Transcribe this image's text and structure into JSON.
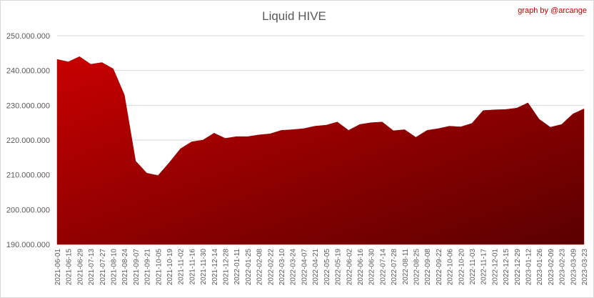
{
  "chart_data": {
    "type": "area",
    "title": "Liquid HIVE",
    "credit": "graph by @arcange",
    "categories": [
      "2021-06-01",
      "2021-06-15",
      "2021-06-29",
      "2021-07-13",
      "2021-07-27",
      "2021-08-10",
      "2021-08-24",
      "2021-09-07",
      "2021-09-21",
      "2021-10-05",
      "2021-10-19",
      "2021-11-02",
      "2021-11-16",
      "2021-11-30",
      "2021-12-14",
      "2021-12-28",
      "2022-01-11",
      "2022-01-25",
      "2022-02-08",
      "2022-02-22",
      "2022-03-10",
      "2022-03-24",
      "2022-04-07",
      "2022-04-21",
      "2022-05-05",
      "2022-05-19",
      "2022-06-02",
      "2022-06-16",
      "2022-06-30",
      "2022-07-14",
      "2022-07-28",
      "2022-08-11",
      "2022-08-25",
      "2022-09-08",
      "2022-09-22",
      "2022-10-06",
      "2022-10-20",
      "2022-11-03",
      "2022-11-17",
      "2022-12-01",
      "2022-12-15",
      "2022-12-29",
      "2023-01-12",
      "2023-01-26",
      "2023-02-09",
      "2023-02-23",
      "2023-03-09",
      "2023-03-23"
    ],
    "values": [
      243200000,
      242500000,
      244000000,
      241800000,
      242300000,
      240500000,
      233000000,
      214000000,
      210500000,
      209800000,
      213500000,
      217500000,
      219500000,
      220000000,
      222000000,
      220500000,
      221000000,
      221000000,
      221500000,
      221800000,
      222800000,
      223000000,
      223300000,
      224000000,
      224300000,
      225200000,
      222800000,
      224500000,
      225000000,
      225200000,
      222700000,
      223000000,
      220800000,
      222800000,
      223300000,
      224000000,
      223800000,
      224800000,
      228500000,
      228700000,
      228800000,
      229200000,
      230700000,
      226000000,
      223700000,
      224500000,
      227500000,
      229000000
    ],
    "color": "#a00000",
    "ylim": [
      190000000,
      250000000
    ],
    "yticks": [
      {
        "value": 190000000,
        "label": "190.000.000"
      },
      {
        "value": 200000000,
        "label": "200.000.000"
      },
      {
        "value": 210000000,
        "label": "210.000.000"
      },
      {
        "value": 220000000,
        "label": "220.000.000"
      },
      {
        "value": 230000000,
        "label": "230.000.000"
      },
      {
        "value": 240000000,
        "label": "240.000.000"
      },
      {
        "value": 250000000,
        "label": "250.000.000"
      }
    ],
    "grid": true
  }
}
